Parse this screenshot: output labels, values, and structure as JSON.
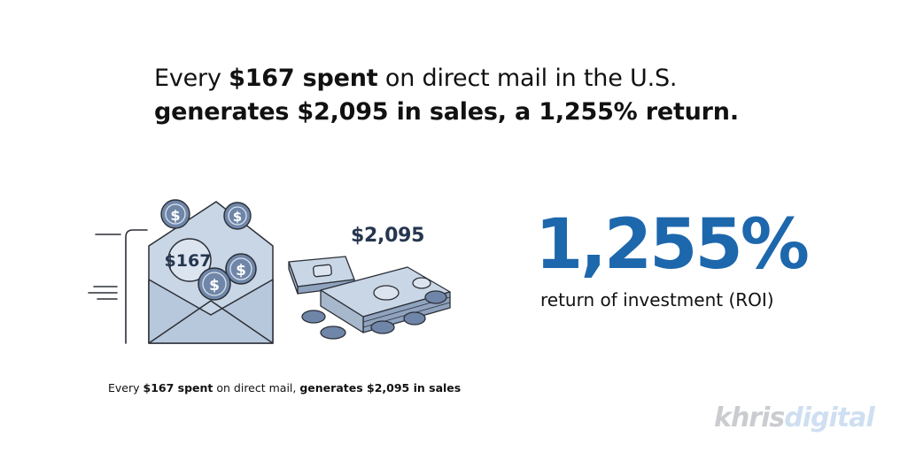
{
  "headline": {
    "l1_pre": "Every ",
    "l1_bold": "$167 spent",
    "l1_post": " on direct mail in the U.S.",
    "l2_bold": "generates $2,095 in sales, a 1,255% return."
  },
  "illustration": {
    "envelope_amount": "$167",
    "cash_amount": "$2,095",
    "coin_symbol": "$",
    "icons": [
      "envelope-icon",
      "coin-icon",
      "cash-stack-icon",
      "speed-lines-icon"
    ]
  },
  "caption": {
    "pre": "Every ",
    "bold1": "$167 spent",
    "mid": " on direct mail, ",
    "bold2": "generates $2,095 in sales"
  },
  "stat": {
    "value": "1,255%",
    "label": "return of investment (ROI)"
  },
  "logo": {
    "part1": "khris",
    "part2": "digital"
  },
  "colors": {
    "accent_blue": "#1d67ad",
    "navy": "#26364f",
    "envelope_fill": "#c9d6e6",
    "coin_fill": "#6f86a8"
  }
}
